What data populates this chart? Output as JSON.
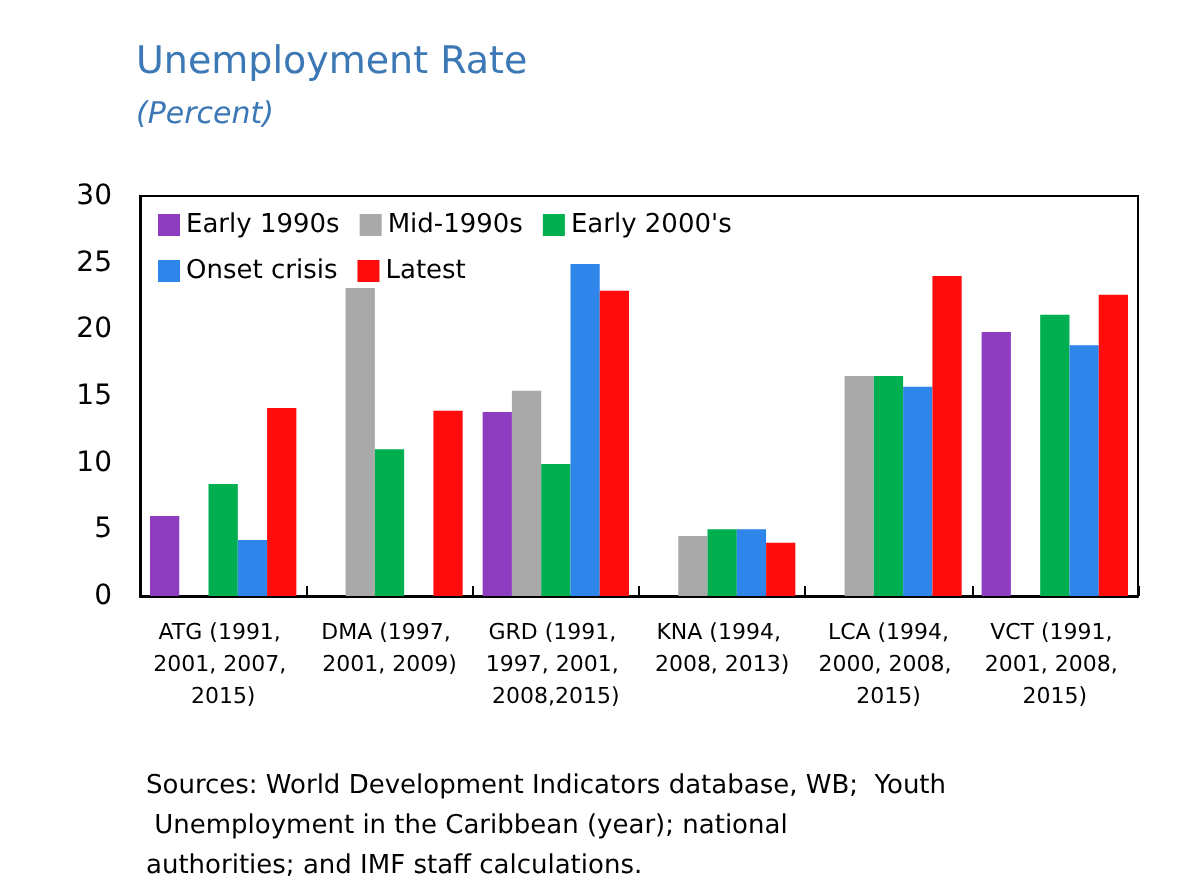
{
  "chart_data": {
    "type": "bar",
    "title": "Unemployment Rate",
    "subtitle": "(Percent)",
    "categories": [
      "ATG (1991, 2001, 2007, 2015)",
      "DMA (1997, 2001, 2009)",
      "GRD (1991, 1997, 2001, 2008,2015)",
      "KNA (1994, 2008, 2013)",
      "LCA (1994,2000, 2008, 2015)",
      "VCT (1991, 2001, 2008, 2015)"
    ],
    "series": [
      {
        "name": "Early 1990s",
        "color": "#8e3cc0",
        "values": [
          6,
          null,
          13.8,
          null,
          null,
          19.8
        ]
      },
      {
        "name": "Mid-1990s",
        "color": "#a9a9a9",
        "values": [
          null,
          23.1,
          15.4,
          4.5,
          16.5,
          null
        ]
      },
      {
        "name": "Early 2000's",
        "color": "#00b050",
        "values": [
          8.4,
          11,
          9.9,
          5,
          16.5,
          21.1
        ]
      },
      {
        "name": "Onset crisis",
        "color": "#2f86ea",
        "values": [
          4.2,
          null,
          24.9,
          5,
          15.7,
          18.8
        ]
      },
      {
        "name": "Latest",
        "color": "#ff0d0d",
        "values": [
          14.1,
          13.9,
          22.9,
          4,
          24,
          22.6
        ]
      }
    ],
    "ylim": [
      0,
      30
    ],
    "yticks": [
      0,
      5,
      10,
      15,
      20,
      25,
      30
    ],
    "grid": false,
    "legend": "top left",
    "annotations": [
      "Sources: World Development Indicators database, WB;  Youth Unemployment in the Caribbean (year); national authorities; and IMF staff calculations."
    ]
  }
}
